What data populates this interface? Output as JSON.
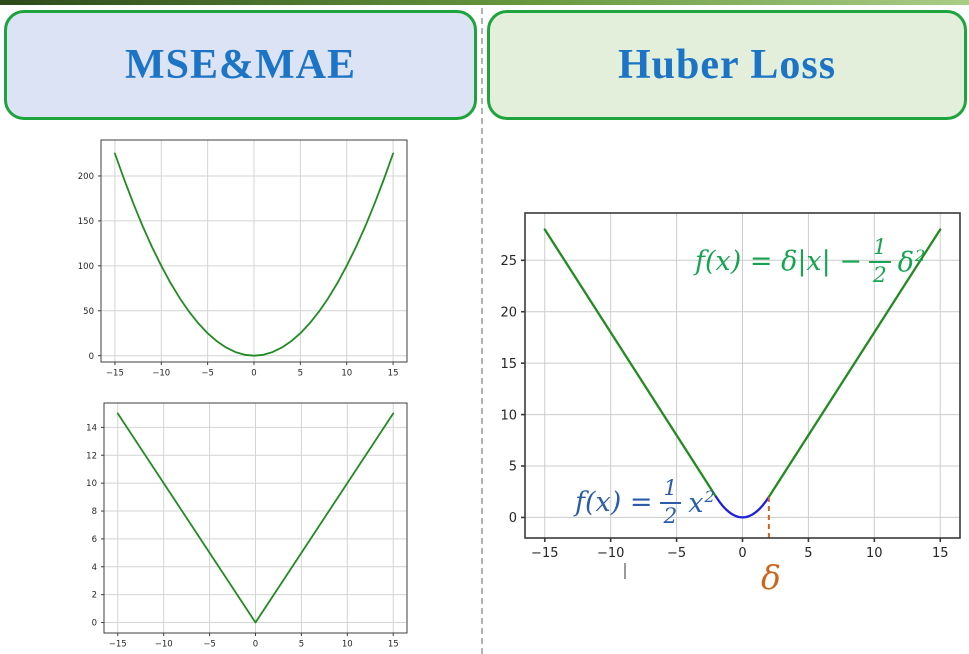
{
  "top_bar": {
    "gradient_css": "linear-gradient(90deg,#2c4a1a 0%,#69983f 55%,#a9cd87 100%)"
  },
  "divider": {
    "color": "#b3b3b3",
    "style": "dashed"
  },
  "headers": {
    "left": {
      "label": "MSE&MAE",
      "fill": "#dbe3f4",
      "border": "#1ea43c",
      "text_color": "#1b74c5"
    },
    "right": {
      "label": "Huber Loss",
      "fill": "#e3efda",
      "border": "#1ea43c",
      "text_color": "#1b74c5"
    }
  },
  "chart_data": [
    {
      "id": "mse",
      "type": "line",
      "title": "",
      "xlabel": "",
      "ylabel": "",
      "grid": true,
      "xlim": [
        -16.5,
        16.5
      ],
      "ylim": [
        -7,
        240
      ],
      "xticks": [
        -15,
        -10,
        -5,
        0,
        5,
        10,
        15
      ],
      "yticks": [
        0,
        50,
        100,
        150,
        200
      ],
      "series": [
        {
          "name": "mse-quadratic-curve",
          "color": "#228b22",
          "x": [
            -15,
            -14,
            -13,
            -12,
            -11,
            -10,
            -9,
            -8,
            -7,
            -6,
            -5,
            -4,
            -3,
            -2,
            -1,
            0,
            1,
            2,
            3,
            4,
            5,
            6,
            7,
            8,
            9,
            10,
            11,
            12,
            13,
            14,
            15
          ],
          "y": [
            225,
            196,
            169,
            144,
            121,
            100,
            81,
            64,
            49,
            36,
            25,
            16,
            9,
            4,
            1,
            0,
            1,
            4,
            9,
            16,
            25,
            36,
            49,
            64,
            81,
            100,
            121,
            144,
            169,
            196,
            225
          ]
        }
      ]
    },
    {
      "id": "mae",
      "type": "line",
      "title": "",
      "xlabel": "",
      "ylabel": "",
      "grid": true,
      "xlim": [
        -16.5,
        16.5
      ],
      "ylim": [
        -0.75,
        15.75
      ],
      "xticks": [
        -15,
        -10,
        -5,
        0,
        5,
        10,
        15
      ],
      "yticks": [
        0,
        2,
        4,
        6,
        8,
        10,
        12,
        14
      ],
      "series": [
        {
          "name": "mae-absolute-curve",
          "color": "#228b22",
          "x": [
            -15,
            0,
            15
          ],
          "y": [
            15,
            0,
            15
          ]
        }
      ]
    },
    {
      "id": "huber",
      "type": "line",
      "title": "",
      "xlabel": "",
      "ylabel": "",
      "grid": true,
      "xlim": [
        -16.5,
        16.5
      ],
      "ylim": [
        -2,
        29.6
      ],
      "xticks": [
        -15,
        -10,
        -5,
        0,
        5,
        10,
        15
      ],
      "yticks": [
        0,
        5,
        10,
        15,
        20,
        25
      ],
      "series": [
        {
          "name": "huber-linear-left",
          "color": "#228b22",
          "x": [
            -15,
            -2
          ],
          "y": [
            28,
            2
          ]
        },
        {
          "name": "huber-quadratic-center",
          "color": "#2020d8",
          "x": [
            -2,
            -1.75,
            -1.5,
            -1.25,
            -1,
            -0.75,
            -0.5,
            -0.25,
            0,
            0.25,
            0.5,
            0.75,
            1,
            1.25,
            1.5,
            1.75,
            2
          ],
          "y": [
            2,
            1.53125,
            1.125,
            0.78125,
            0.5,
            0.28125,
            0.125,
            0.03125,
            0,
            0.03125,
            0.125,
            0.28125,
            0.5,
            0.78125,
            1.125,
            1.53125,
            2
          ]
        },
        {
          "name": "huber-linear-right",
          "color": "#228b22",
          "x": [
            2,
            15
          ],
          "y": [
            2,
            28
          ]
        }
      ],
      "vlines": [
        {
          "x": 2,
          "y_from": -2,
          "y_to": 2.4,
          "color": "#cd661c",
          "dash": "5 4"
        }
      ],
      "annotations": {
        "linear": {
          "prefix": "f(x) = δ|x| −",
          "frac_num": "1",
          "frac_den": "2",
          "base": "δ",
          "sup": "2",
          "color": "#17a452"
        },
        "quadratic": {
          "prefix": "f(x) =",
          "frac_num": "1",
          "frac_den": "2",
          "base": "x",
          "sup": "2",
          "color": "#2a5caa"
        },
        "delta_marker": {
          "text": "δ",
          "color": "#cd661c",
          "at_x": 2
        }
      }
    }
  ]
}
